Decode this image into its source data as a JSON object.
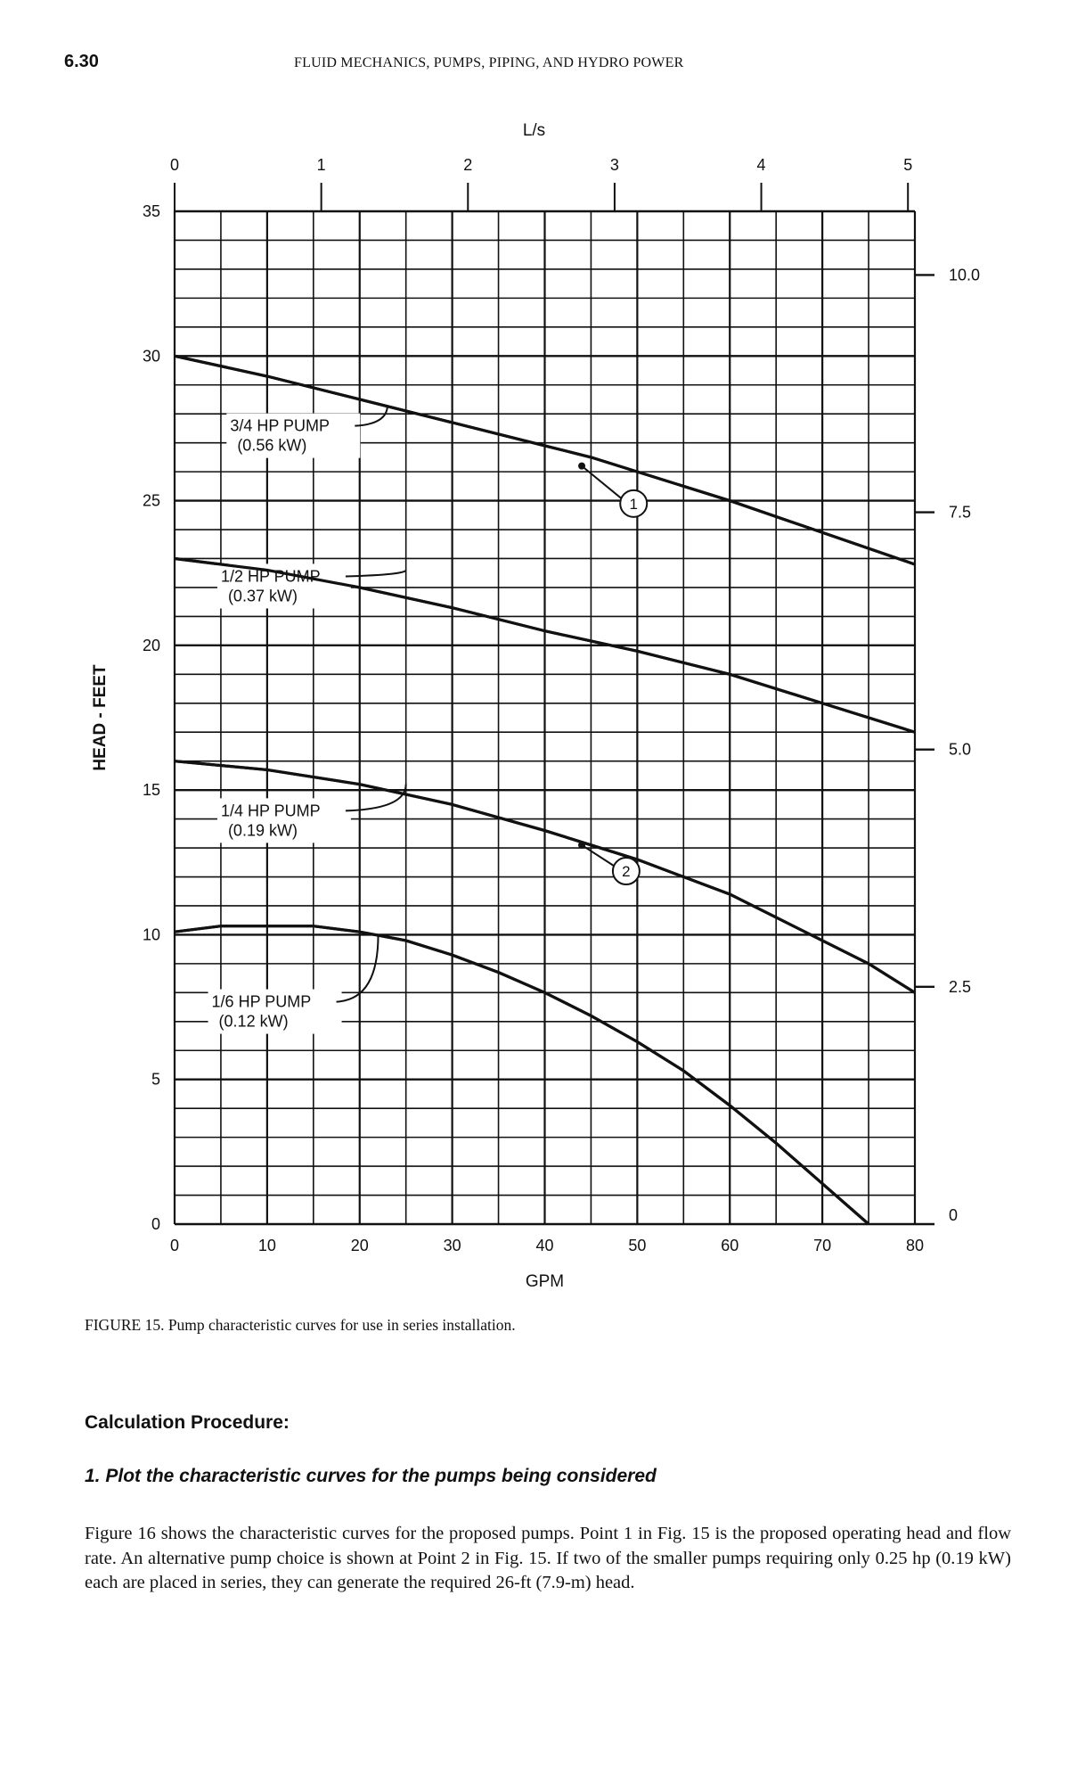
{
  "page": {
    "page_number": "6.30",
    "running_head": "FLUID MECHANICS, PUMPS, PIPING, AND HYDRO POWER",
    "caption": "FIGURE 15. Pump characteristic curves for use in series installation.",
    "section_heading": "Calculation Procedure:",
    "step_heading": "1. Plot the characteristic curves for the pumps being considered",
    "paragraph": "Figure 16 shows the characteristic curves for the proposed pumps. Point 1 in Fig. 15 is the proposed operating head and flow rate. An alternative pump choice is shown at Point 2 in Fig. 15. If two of the smaller pumps requiring only 0.25 hp (0.19 kW) each are placed in series, they can generate the required 26-ft (7.9-m) head."
  },
  "chart_data": {
    "type": "line",
    "xlabel": "GPM",
    "ylabel": "HEAD - FEET",
    "top_axis_label": "L/s",
    "right_axis_label": "",
    "xlim": [
      0,
      80
    ],
    "ylim": [
      0,
      35
    ],
    "x_ticks": [
      "0",
      "10",
      "20",
      "30",
      "40",
      "50",
      "60",
      "70",
      "80"
    ],
    "x_tick_values": [
      0,
      10,
      20,
      30,
      40,
      50,
      60,
      70,
      80
    ],
    "y_ticks": [
      "0",
      "5",
      "10",
      "15",
      "20",
      "25",
      "30",
      "35"
    ],
    "y_tick_values": [
      0,
      5,
      10,
      15,
      20,
      25,
      30,
      35
    ],
    "top_ticks": [
      "0",
      "1",
      "2",
      "3",
      "4",
      "5"
    ],
    "top_tick_values_gpm": [
      0,
      15.85,
      31.7,
      47.55,
      63.4,
      79.25
    ],
    "right_ticks": [
      "0",
      "2.5",
      "5.0",
      "7.5",
      "10.0"
    ],
    "right_tick_values_ft": [
      0,
      8.2,
      16.4,
      24.6,
      32.8
    ],
    "grid": true,
    "grid_step": {
      "x": 5,
      "y": 1
    },
    "line_color": "#111111",
    "series": [
      {
        "name": "3/4 HP PUMP",
        "sublabel": "(0.56 kW)",
        "x": [
          0,
          10,
          20,
          30,
          40,
          45,
          50,
          60,
          70,
          80
        ],
        "y": [
          30,
          29.3,
          28.5,
          27.7,
          26.9,
          26.5,
          26.0,
          25.0,
          23.9,
          22.8
        ]
      },
      {
        "name": "1/2 HP PUMP",
        "sublabel": "(0.37 kW)",
        "x": [
          0,
          10,
          20,
          30,
          40,
          50,
          60,
          70,
          80
        ],
        "y": [
          23,
          22.6,
          22.0,
          21.3,
          20.5,
          19.8,
          19.0,
          18.0,
          17.0
        ]
      },
      {
        "name": "1/4 HP PUMP",
        "sublabel": "(0.19 kW)",
        "x": [
          0,
          10,
          20,
          30,
          40,
          45,
          50,
          55,
          60,
          65,
          70,
          75,
          80
        ],
        "y": [
          16,
          15.7,
          15.2,
          14.5,
          13.6,
          13.1,
          12.6,
          12.0,
          11.4,
          10.6,
          9.8,
          9.0,
          8.0
        ]
      },
      {
        "name": "1/6 HP PUMP",
        "sublabel": "(0.12 kW)",
        "x": [
          0,
          5,
          10,
          15,
          20,
          25,
          30,
          35,
          40,
          45,
          50,
          55,
          60,
          65,
          70,
          75
        ],
        "y": [
          10.1,
          10.3,
          10.3,
          10.3,
          10.1,
          9.8,
          9.3,
          8.7,
          8.0,
          7.2,
          6.3,
          5.3,
          4.1,
          2.8,
          1.4,
          0
        ]
      }
    ],
    "annotations": [
      {
        "label": "1",
        "point": [
          44,
          26.2
        ]
      },
      {
        "label": "2",
        "point": [
          44,
          13.1
        ]
      }
    ]
  }
}
